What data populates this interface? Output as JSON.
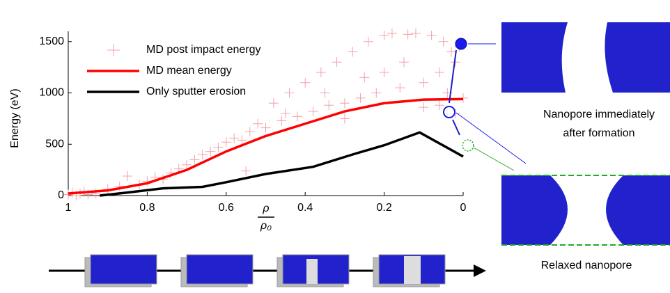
{
  "chart_data": {
    "type": "line",
    "ylabel": "Energy (eV)",
    "xlabel_num": "ρ",
    "xlabel_den": "ρ₀",
    "xlim": [
      1,
      0
    ],
    "ylim": [
      0,
      1600
    ],
    "xticks": [
      1,
      {
        "value": 0.8,
        "label": "0.8"
      },
      {
        "value": 0.6,
        "label": "0.6"
      },
      {
        "value": 0.4,
        "label": "0.4"
      },
      {
        "value": 0.2,
        "label": "0.2"
      },
      0
    ],
    "yticks": [
      0,
      500,
      1000,
      1500
    ],
    "legend": "upper left",
    "annotations": [
      "Nanopore immediately",
      "after formation",
      "Relaxed nanopore"
    ],
    "series": [
      {
        "name": "MD post impact energy",
        "type": "scatter",
        "color": "#f4a0a8",
        "x": [
          1,
          0.99,
          0.98,
          0.97,
          0.96,
          0.95,
          0.93,
          0.9,
          0.87,
          0.85,
          0.82,
          0.8,
          0.78,
          0.76,
          0.74,
          0.72,
          0.7,
          0.68,
          0.66,
          0.64,
          0.62,
          0.6,
          0.58,
          0.56,
          0.55,
          0.54,
          0.52,
          0.5,
          0.48,
          0.46,
          0.44,
          0.42,
          0.4,
          0.38,
          0.36,
          0.34,
          0.32,
          0.3,
          0.28,
          0.26,
          0.24,
          0.22,
          0.2,
          0.18,
          0.16,
          0.14,
          0.12,
          0.1,
          0.08,
          0.06,
          0.05,
          0.04,
          0.03,
          0.02,
          0.01,
          0,
          0.02,
          0.06,
          0.1,
          0.15,
          0.2,
          0.25,
          0.3,
          0.35,
          0.45
        ],
        "values": [
          10,
          30,
          0,
          20,
          40,
          10,
          20,
          60,
          90,
          190,
          110,
          140,
          180,
          160,
          220,
          260,
          300,
          350,
          400,
          430,
          470,
          520,
          560,
          540,
          240,
          620,
          700,
          660,
          900,
          730,
          1000,
          770,
          1100,
          820,
          1200,
          880,
          1300,
          900,
          1400,
          950,
          1500,
          1000,
          1560,
          1580,
          1050,
          1570,
          1580,
          1100,
          1560,
          1200,
          1500,
          1000,
          1400,
          800,
          1450,
          950,
          1300,
          880,
          860,
          1300,
          1200,
          1150,
          750,
          1000,
          800
        ]
      },
      {
        "name": "MD mean energy",
        "type": "line",
        "color": "#ff0000",
        "x": [
          1,
          0.9,
          0.8,
          0.7,
          0.6,
          0.5,
          0.4,
          0.3,
          0.2,
          0.1,
          0
        ],
        "values": [
          20,
          50,
          120,
          250,
          430,
          580,
          700,
          820,
          900,
          935,
          940
        ]
      },
      {
        "name": "Only sputter erosion",
        "type": "line",
        "color": "#000000",
        "x": [
          0.92,
          0.85,
          0.76,
          0.66,
          0.6,
          0.5,
          0.38,
          0.28,
          0.2,
          0.11,
          0
        ],
        "values": [
          0,
          30,
          70,
          85,
          130,
          210,
          280,
          400,
          490,
          615,
          380
        ]
      }
    ]
  }
}
